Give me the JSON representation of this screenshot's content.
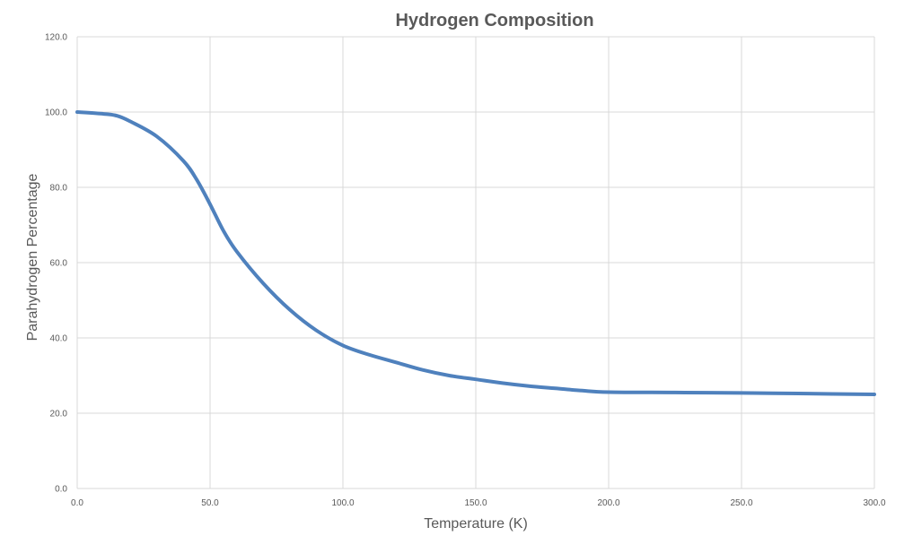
{
  "chart_data": {
    "type": "line",
    "title": "Hydrogen Composition",
    "xlabel": "Temperature (K)",
    "ylabel": "Parahydrogen Percentage",
    "xlim": [
      0,
      300
    ],
    "ylim": [
      0,
      120
    ],
    "x_ticks": [
      "0.0",
      "50.0",
      "100.0",
      "150.0",
      "200.0",
      "250.0",
      "300.0"
    ],
    "y_ticks": [
      "0.0",
      "20.0",
      "40.0",
      "60.0",
      "80.0",
      "100.0",
      "120.0"
    ],
    "grid": true,
    "series": [
      {
        "color": "#4f81bd",
        "x": [
          0,
          10,
          15,
          20,
          30,
          40,
          45,
          50,
          55,
          60,
          70,
          80,
          90,
          100,
          110,
          120,
          130,
          140,
          150,
          160,
          170,
          180,
          190,
          200,
          225,
          250,
          275,
          300
        ],
        "y": [
          100,
          99.5,
          99,
          97.5,
          93.5,
          87,
          82,
          75.5,
          68.5,
          63,
          54.5,
          47.5,
          42,
          38,
          35.5,
          33.5,
          31.5,
          30,
          29,
          28,
          27.2,
          26.6,
          26,
          25.6,
          25.5,
          25.4,
          25.2,
          25
        ]
      }
    ]
  }
}
